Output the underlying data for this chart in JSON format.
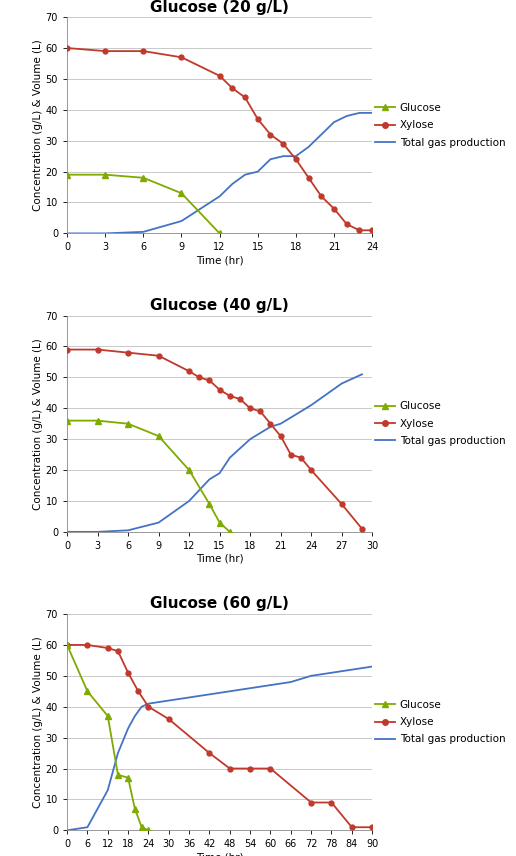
{
  "panels": [
    {
      "title": "Glucose (20 g/L)",
      "xlim": [
        0,
        24
      ],
      "xticks": [
        0,
        3,
        6,
        9,
        12,
        15,
        18,
        21,
        24
      ],
      "ylim": [
        0,
        70
      ],
      "yticks": [
        0,
        10,
        20,
        30,
        40,
        50,
        60,
        70
      ],
      "glucose": {
        "x": [
          0,
          3,
          6,
          9,
          12
        ],
        "y": [
          19,
          19,
          18,
          13,
          0
        ],
        "color": "#7faa00",
        "marker": "^"
      },
      "xylose": {
        "x": [
          0,
          3,
          6,
          9,
          12,
          13,
          14,
          15,
          16,
          17,
          18,
          19,
          20,
          21,
          22,
          23,
          24
        ],
        "y": [
          60,
          59,
          59,
          57,
          51,
          47,
          44,
          37,
          32,
          29,
          24,
          18,
          12,
          8,
          3,
          1,
          1
        ],
        "color": "#c0392b",
        "marker": "o"
      },
      "gas": {
        "x": [
          0,
          3,
          6,
          9,
          12,
          13,
          14,
          15,
          16,
          17,
          18,
          19,
          20,
          21,
          22,
          23,
          24
        ],
        "y": [
          0,
          0,
          0.5,
          4,
          12,
          16,
          19,
          20,
          24,
          25,
          25,
          28,
          32,
          36,
          38,
          39,
          39
        ],
        "color": "#4472c4",
        "marker": null
      }
    },
    {
      "title": "Glucose (40 g/L)",
      "xlim": [
        0,
        30
      ],
      "xticks": [
        0,
        3,
        6,
        9,
        12,
        15,
        18,
        21,
        24,
        27,
        30
      ],
      "ylim": [
        0,
        70
      ],
      "yticks": [
        0,
        10,
        20,
        30,
        40,
        50,
        60,
        70
      ],
      "glucose": {
        "x": [
          0,
          3,
          6,
          9,
          12,
          14,
          15,
          16
        ],
        "y": [
          36,
          36,
          35,
          31,
          20,
          9,
          3,
          0
        ],
        "color": "#7faa00",
        "marker": "^"
      },
      "xylose": {
        "x": [
          0,
          3,
          6,
          9,
          12,
          13,
          14,
          15,
          16,
          17,
          18,
          19,
          20,
          21,
          22,
          23,
          24,
          27,
          29
        ],
        "y": [
          59,
          59,
          58,
          57,
          52,
          50,
          49,
          46,
          44,
          43,
          40,
          39,
          35,
          31,
          25,
          24,
          20,
          9,
          1
        ],
        "color": "#c0392b",
        "marker": "o"
      },
      "gas": {
        "x": [
          0,
          3,
          6,
          9,
          12,
          14,
          15,
          16,
          17,
          18,
          19,
          20,
          21,
          24,
          27,
          29
        ],
        "y": [
          0,
          0,
          0.5,
          3,
          10,
          17,
          19,
          24,
          27,
          30,
          32,
          34,
          35,
          41,
          48,
          51
        ],
        "color": "#4472c4",
        "marker": null
      }
    },
    {
      "title": "Glucose (60 g/L)",
      "xlim": [
        0,
        90
      ],
      "xticks": [
        0,
        6,
        12,
        18,
        24,
        30,
        36,
        42,
        48,
        54,
        60,
        66,
        72,
        78,
        84,
        90
      ],
      "ylim": [
        0,
        70
      ],
      "yticks": [
        0,
        10,
        20,
        30,
        40,
        50,
        60,
        70
      ],
      "glucose": {
        "x": [
          0,
          6,
          12,
          15,
          18,
          20,
          22,
          24
        ],
        "y": [
          60,
          45,
          37,
          18,
          17,
          7,
          1,
          0
        ],
        "color": "#7faa00",
        "marker": "^"
      },
      "xylose": {
        "x": [
          0,
          6,
          12,
          15,
          18,
          21,
          24,
          30,
          42,
          48,
          54,
          60,
          72,
          78,
          84,
          90
        ],
        "y": [
          60,
          60,
          59,
          58,
          51,
          45,
          40,
          36,
          25,
          20,
          20,
          20,
          9,
          9,
          1,
          1
        ],
        "color": "#c0392b",
        "marker": "o"
      },
      "gas": {
        "x": [
          0,
          6,
          12,
          15,
          18,
          20,
          22,
          24,
          30,
          42,
          48,
          54,
          60,
          66,
          72,
          78,
          84,
          90
        ],
        "y": [
          0,
          1,
          13,
          25,
          33,
          37,
          40,
          41,
          42,
          44,
          45,
          46,
          47,
          48,
          50,
          51,
          52,
          53
        ],
        "color": "#4472c4",
        "marker": null
      }
    }
  ],
  "xlabel": "Time (hr)",
  "ylabel": "Concentration (g/L) & Volume (L)",
  "legend_labels": [
    "Glucose",
    "Xylose",
    "Total gas production"
  ],
  "legend_colors": [
    "#7faa00",
    "#c0392b",
    "#4472c4"
  ],
  "legend_markers": [
    "^",
    "o",
    null
  ],
  "bg_color": "#ffffff",
  "plot_bg_color": "#ffffff",
  "grid_color": "#c0c0c0",
  "title_fontsize": 11,
  "axis_label_fontsize": 7.5,
  "tick_fontsize": 7,
  "legend_fontsize": 7.5
}
